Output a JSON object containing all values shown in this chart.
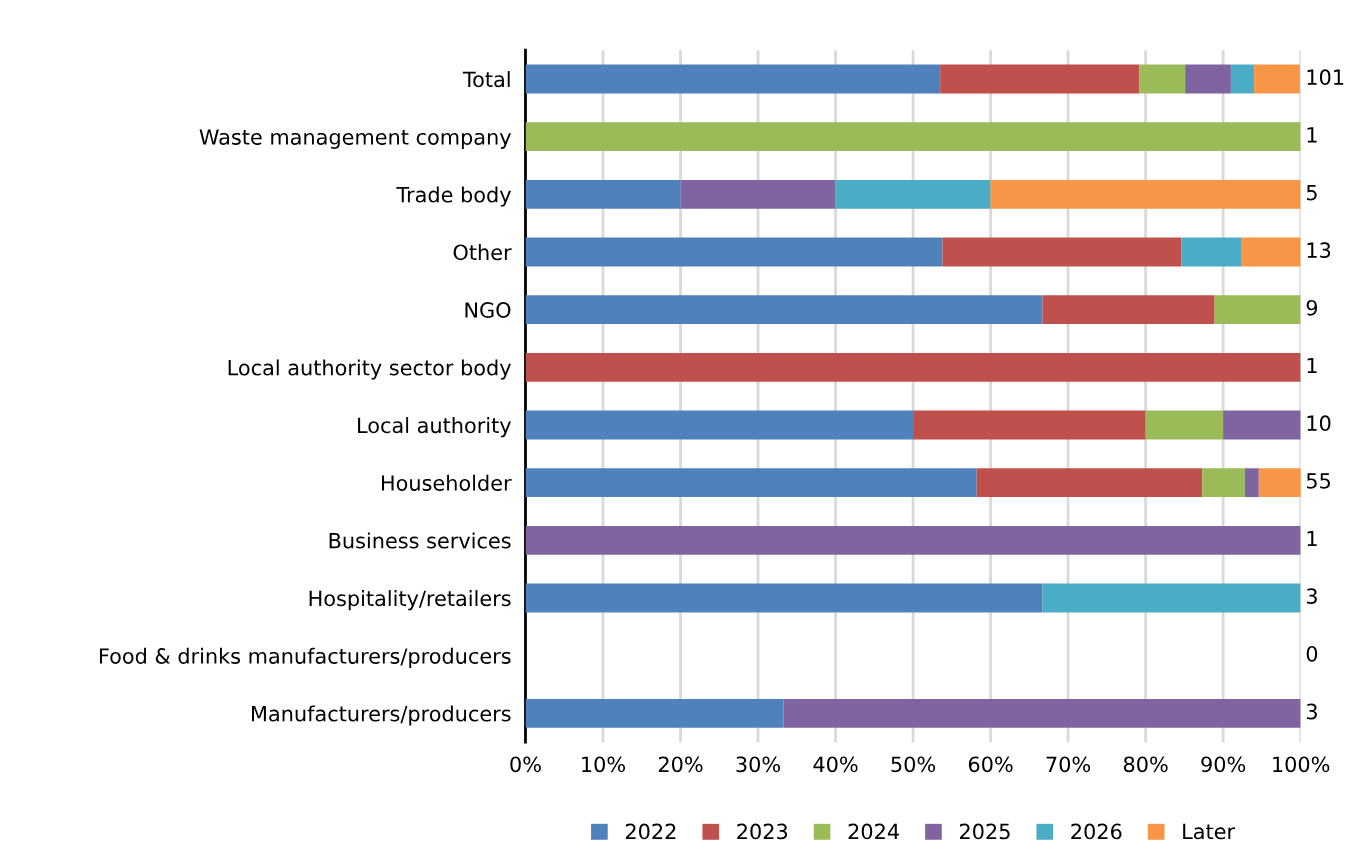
{
  "chart_data": {
    "type": "bar",
    "orientation": "horizontal",
    "stacked": true,
    "categories": [
      "Total",
      "Waste management company",
      "Trade body",
      "Other",
      "NGO",
      "Local authority sector body",
      "Local authority",
      "Householder",
      "Business services",
      "Hospitality/retailers",
      "Food & drinks manufacturers/producers",
      "Manufacturers/producers"
    ],
    "series": [
      {
        "name": "2022",
        "color": "#4f81bd",
        "values": [
          53.5,
          0,
          20,
          53.8,
          66.7,
          0,
          50,
          58.2,
          0,
          66.7,
          0,
          33.3
        ]
      },
      {
        "name": "2023",
        "color": "#c0504d",
        "values": [
          25.7,
          0,
          0,
          30.8,
          22.2,
          100,
          30,
          29.1,
          0,
          0,
          0,
          0
        ]
      },
      {
        "name": "2024",
        "color": "#9bbb59",
        "values": [
          5.9,
          100,
          0,
          0,
          11.1,
          0,
          10,
          5.5,
          0,
          0,
          0,
          0
        ]
      },
      {
        "name": "2025",
        "color": "#8064a2",
        "values": [
          5.9,
          0,
          20,
          0,
          0,
          0,
          10,
          1.8,
          100,
          0,
          0,
          66.7
        ]
      },
      {
        "name": "2026",
        "color": "#4bacc6",
        "values": [
          3.0,
          0,
          20,
          7.7,
          0,
          0,
          0,
          0,
          0,
          33.3,
          0,
          0
        ]
      },
      {
        "name": "Later",
        "color": "#f79646",
        "values": [
          5.9,
          0,
          40,
          7.7,
          0,
          0,
          0,
          5.5,
          0,
          0,
          0,
          0
        ]
      }
    ],
    "annotations": [
      "101",
      "1",
      "5",
      "13",
      "9",
      "1",
      "10",
      "55",
      "1",
      "3",
      "0",
      "3"
    ],
    "xlim": [
      0,
      100
    ],
    "xticks": [
      {
        "value": 0,
        "label": "0%"
      },
      {
        "value": 10,
        "label": "10%"
      },
      {
        "value": 20,
        "label": "20%"
      },
      {
        "value": 30,
        "label": "30%"
      },
      {
        "value": 40,
        "label": "40%"
      },
      {
        "value": 50,
        "label": "50%"
      },
      {
        "value": 60,
        "label": "60%"
      },
      {
        "value": 70,
        "label": "70%"
      },
      {
        "value": 80,
        "label": "80%"
      },
      {
        "value": 90,
        "label": "90%"
      },
      {
        "value": 100,
        "label": "100%"
      }
    ],
    "grid": "x",
    "legend": "bottom"
  }
}
